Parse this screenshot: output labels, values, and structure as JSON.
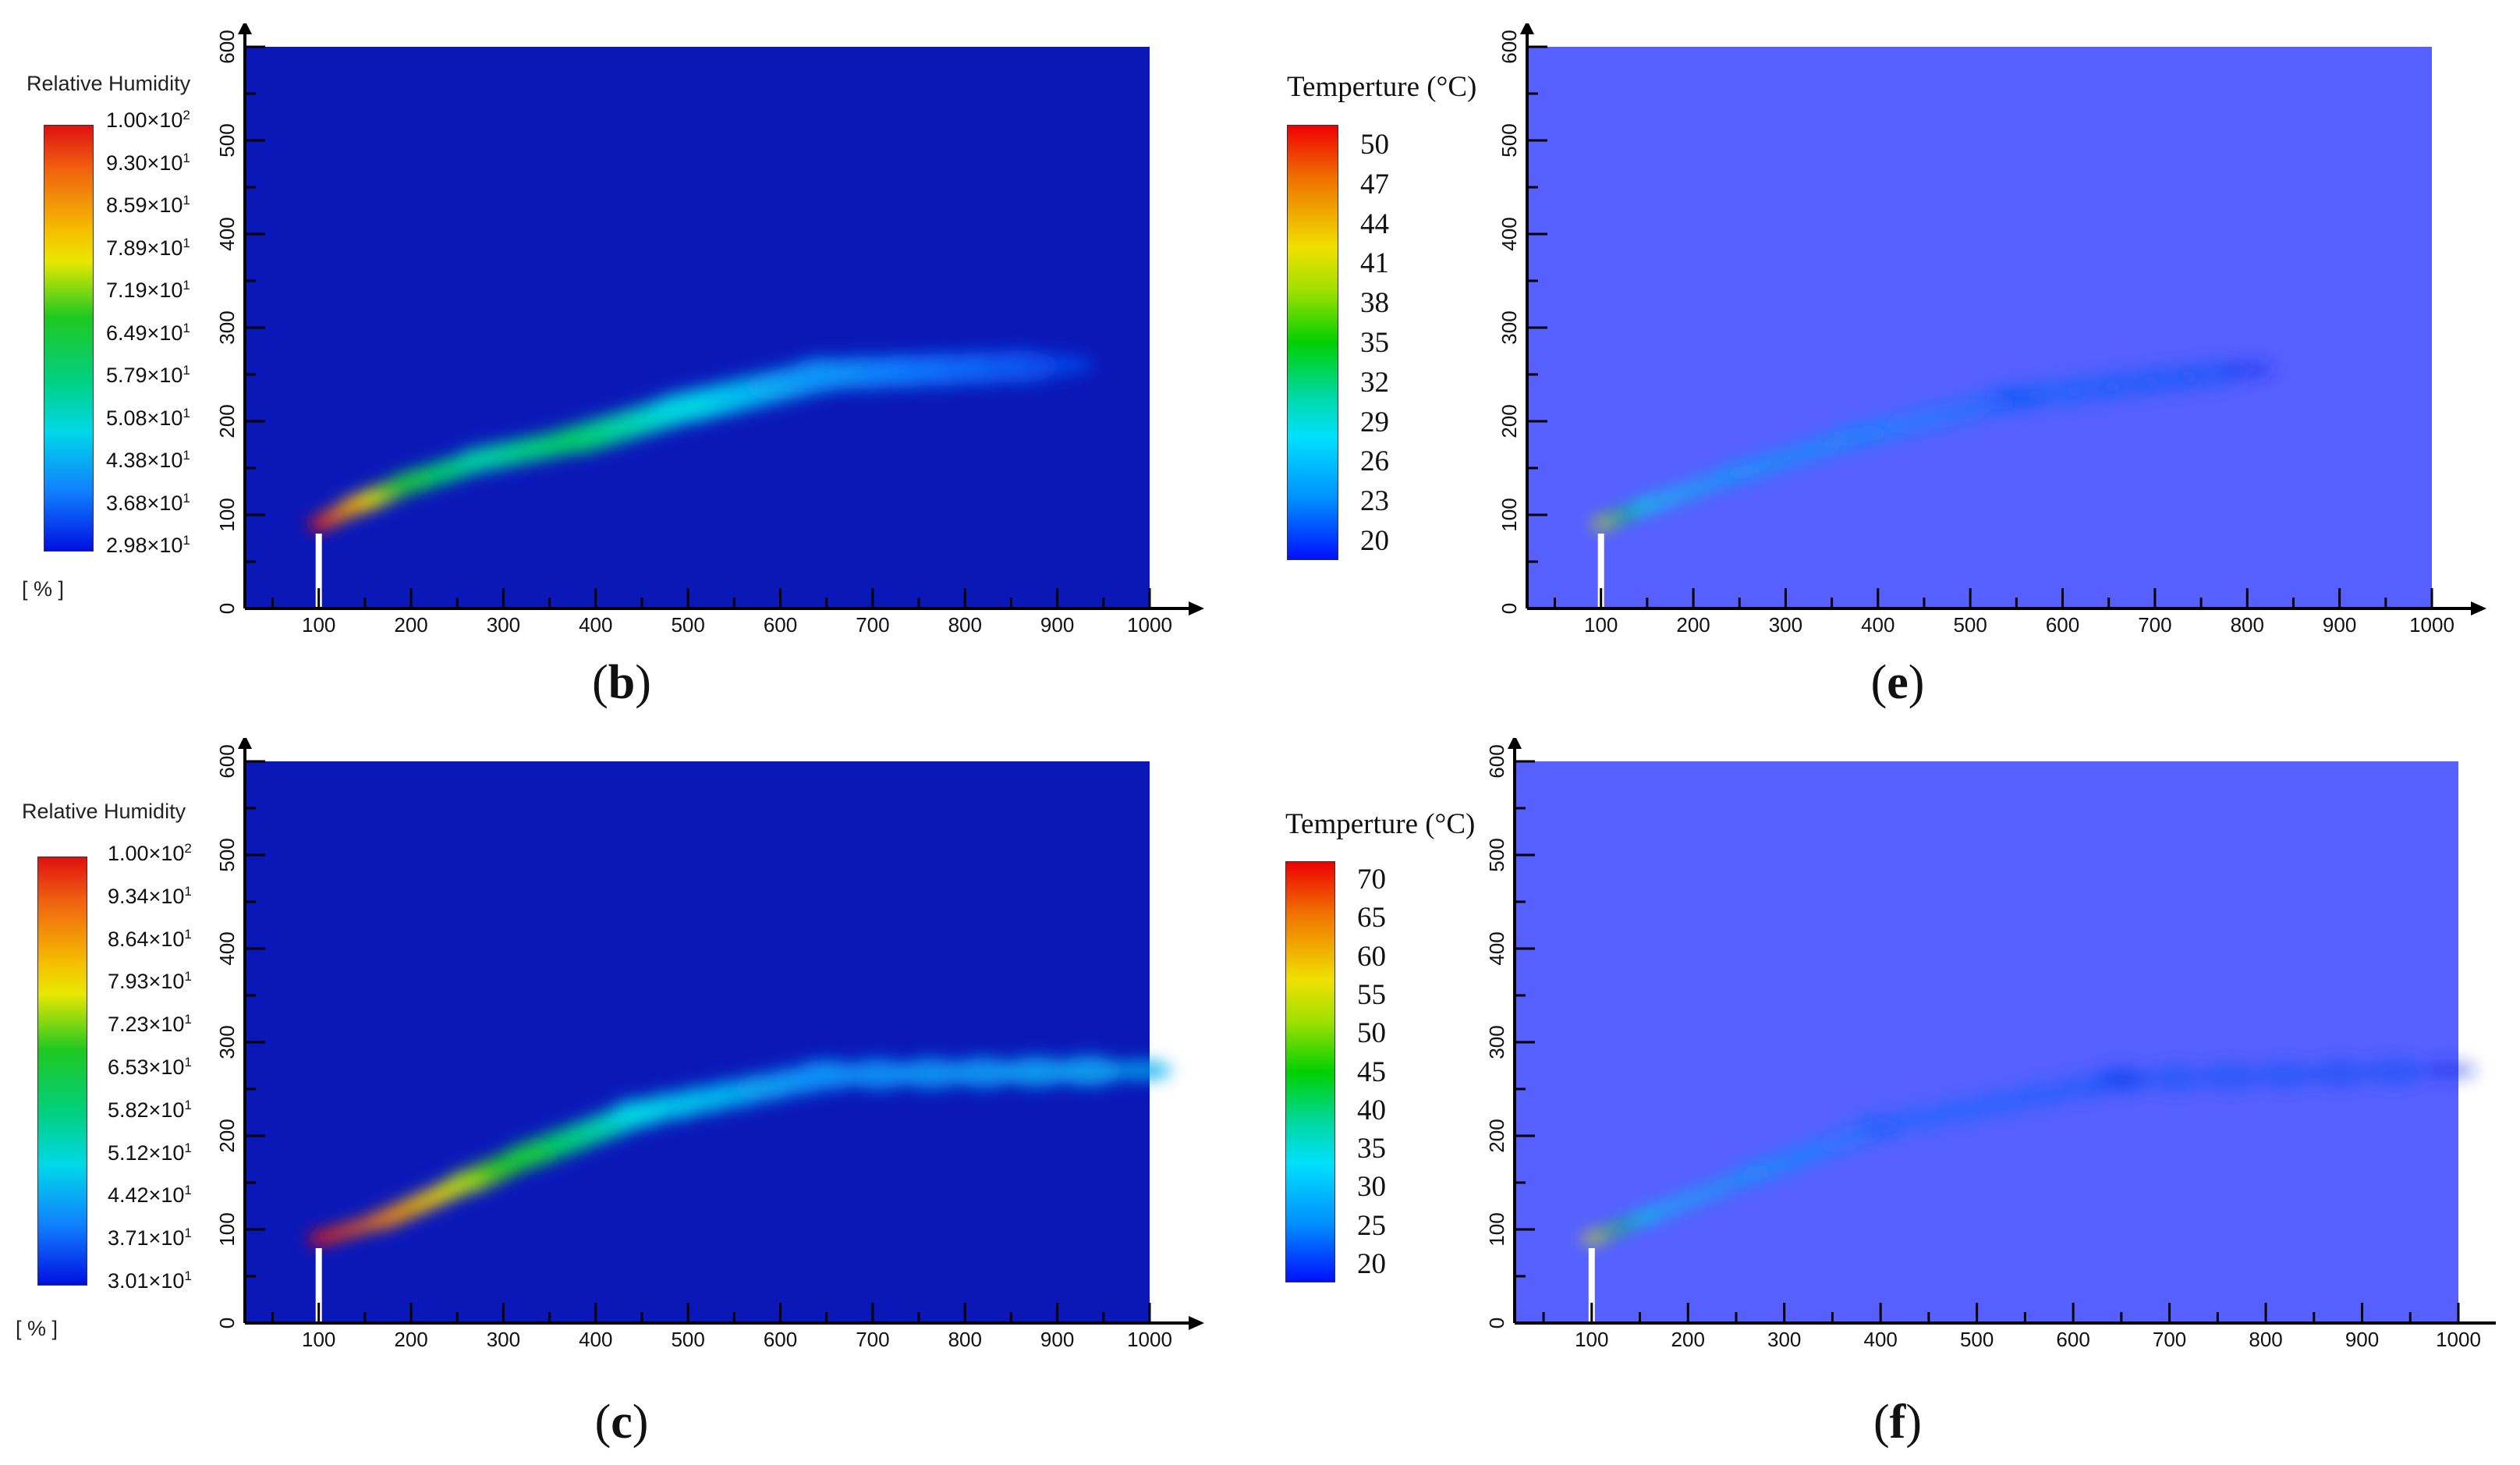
{
  "panels": [
    {
      "caption": "b",
      "colorbar": {
        "title": "Relative Humidity",
        "unit": "[ % ]",
        "ticks": [
          "1.00×10²",
          "9.30×10¹",
          "8.59×10¹",
          "7.89×10¹",
          "7.19×10¹",
          "6.49×10¹",
          "5.79×10¹",
          "5.08×10¹",
          "4.38×10¹",
          "3.68×10¹",
          "2.98×10¹"
        ]
      }
    },
    {
      "caption": "e",
      "colorbar": {
        "title": "Temperture (°C)",
        "unit": "",
        "ticks": [
          "50",
          "47",
          "44",
          "41",
          "38",
          "35",
          "32",
          "29",
          "26",
          "23",
          "20"
        ]
      }
    },
    {
      "caption": "c",
      "colorbar": {
        "title": "Relative Humidity",
        "unit": "[ % ]",
        "ticks": [
          "1.00×10²",
          "9.34×10¹",
          "8.64×10¹",
          "7.93×10¹",
          "7.23×10¹",
          "6.53×10¹",
          "5.82×10¹",
          "5.12×10¹",
          "4.42×10¹",
          "3.71×10¹",
          "3.01×10¹"
        ]
      }
    },
    {
      "caption": "f",
      "colorbar": {
        "title": "Temperture (°C)",
        "unit": "",
        "ticks": [
          "70",
          "65",
          "60",
          "55",
          "50",
          "45",
          "40",
          "35",
          "30",
          "25",
          "20"
        ]
      }
    }
  ],
  "chart_data": [
    {
      "type": "heatmap",
      "variable": "Relative Humidity",
      "x_ticks": [
        100,
        200,
        300,
        400,
        500,
        600,
        700,
        800,
        900,
        1000
      ],
      "y_ticks": [
        0,
        100,
        200,
        300,
        400,
        500,
        600
      ],
      "xlim": [
        20,
        1000
      ],
      "ylim": [
        0,
        600
      ],
      "colorbar_range": [
        29.8,
        100
      ],
      "background_color": "#0a18b8",
      "stack": {
        "x": 100,
        "height": 80
      },
      "plume": [
        {
          "x": 100,
          "y": 90,
          "value": 100
        },
        {
          "x": 140,
          "y": 110,
          "value": 85
        },
        {
          "x": 200,
          "y": 135,
          "value": 65
        },
        {
          "x": 280,
          "y": 160,
          "value": 55
        },
        {
          "x": 380,
          "y": 180,
          "value": 60
        },
        {
          "x": 500,
          "y": 215,
          "value": 50
        },
        {
          "x": 650,
          "y": 250,
          "value": 42
        },
        {
          "x": 900,
          "y": 260,
          "value": 35
        }
      ]
    },
    {
      "type": "heatmap",
      "variable": "Temperture",
      "x_ticks": [
        100,
        200,
        300,
        400,
        500,
        600,
        700,
        800,
        900,
        1000
      ],
      "y_ticks": [
        0,
        100,
        200,
        300,
        400,
        500,
        600
      ],
      "xlim": [
        20,
        1000
      ],
      "ylim": [
        0,
        600
      ],
      "colorbar_range": [
        20,
        50
      ],
      "background_color": "#5560ff",
      "stack": {
        "x": 100,
        "height": 80
      },
      "plume": [
        {
          "x": 100,
          "y": 90,
          "value": 40
        },
        {
          "x": 150,
          "y": 110,
          "value": 28
        },
        {
          "x": 250,
          "y": 145,
          "value": 25
        },
        {
          "x": 380,
          "y": 185,
          "value": 24
        },
        {
          "x": 550,
          "y": 225,
          "value": 22
        },
        {
          "x": 800,
          "y": 255,
          "value": 21
        }
      ]
    },
    {
      "type": "heatmap",
      "variable": "Relative Humidity",
      "x_ticks": [
        100,
        200,
        300,
        400,
        500,
        600,
        700,
        800,
        900,
        1000
      ],
      "y_ticks": [
        0,
        100,
        200,
        300,
        400,
        500,
        600
      ],
      "xlim": [
        20,
        1000
      ],
      "ylim": [
        0,
        600
      ],
      "colorbar_range": [
        30.1,
        100
      ],
      "background_color": "#0a18b8",
      "stack": {
        "x": 100,
        "height": 80
      },
      "plume": [
        {
          "x": 100,
          "y": 90,
          "value": 100
        },
        {
          "x": 170,
          "y": 110,
          "value": 90
        },
        {
          "x": 260,
          "y": 150,
          "value": 75
        },
        {
          "x": 330,
          "y": 180,
          "value": 65
        },
        {
          "x": 450,
          "y": 225,
          "value": 50
        },
        {
          "x": 650,
          "y": 265,
          "value": 42
        },
        {
          "x": 990,
          "y": 270,
          "value": 45
        }
      ]
    },
    {
      "type": "heatmap",
      "variable": "Temperture",
      "x_ticks": [
        100,
        200,
        300,
        400,
        500,
        600,
        700,
        800,
        900,
        1000
      ],
      "y_ticks": [
        0,
        100,
        200,
        300,
        400,
        500,
        600
      ],
      "xlim": [
        20,
        1000
      ],
      "ylim": [
        0,
        600
      ],
      "colorbar_range": [
        20,
        70
      ],
      "background_color": "#5560ff",
      "stack": {
        "x": 100,
        "height": 80
      },
      "plume": [
        {
          "x": 100,
          "y": 90,
          "value": 55
        },
        {
          "x": 160,
          "y": 115,
          "value": 32
        },
        {
          "x": 270,
          "y": 160,
          "value": 28
        },
        {
          "x": 400,
          "y": 210,
          "value": 24
        },
        {
          "x": 650,
          "y": 260,
          "value": 22
        },
        {
          "x": 990,
          "y": 270,
          "value": 21
        }
      ]
    }
  ]
}
